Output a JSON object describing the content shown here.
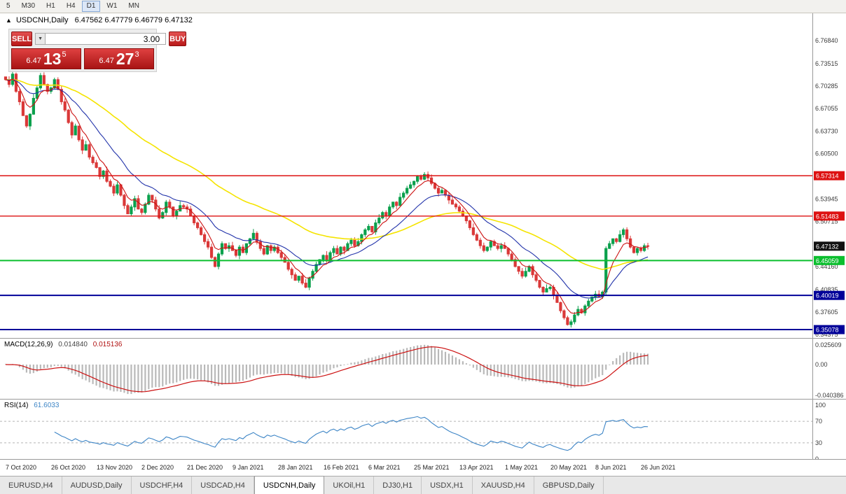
{
  "toolbar": {
    "timeframes": [
      "5",
      "M30",
      "H1",
      "H4",
      "D1",
      "W1",
      "MN"
    ],
    "active": "D1"
  },
  "chart": {
    "symbol": "USDCNH,Daily",
    "ohlc_text": "6.47562 6.47779 6.46779 6.47132",
    "trade_panel": {
      "sell_label": "SELL",
      "buy_label": "BUY",
      "volume": "3.00",
      "sell_price": {
        "small": "6.47",
        "big": "13",
        "sup": "5"
      },
      "buy_price": {
        "small": "6.47",
        "big": "27",
        "sup": "3"
      }
    },
    "levels": [
      {
        "label": "6.57314",
        "value": 6.57314,
        "color": "#dd1111",
        "width": 1.4
      },
      {
        "label": "6.51483",
        "value": 6.51483,
        "color": "#dd1111",
        "width": 1.4
      },
      {
        "label": "6.45059",
        "value": 6.45059,
        "color": "#0bbf2e",
        "width": 2
      },
      {
        "label": "6.40019",
        "value": 6.40019,
        "color": "#000099",
        "width": 2
      },
      {
        "label": "6.35078",
        "value": 6.35078,
        "color": "#000099",
        "width": 2
      }
    ],
    "current_price": {
      "label": "6.47132",
      "value": 6.47132,
      "badge_color": "#111111"
    },
    "scale_ticks": [
      "6.76840",
      "6.73515",
      "6.70285",
      "6.67055",
      "6.63730",
      "6.60500",
      "6.53945",
      "6.50715",
      "6.44160",
      "6.40835",
      "6.37605",
      "6.34375"
    ]
  },
  "chart_data": {
    "type": "candlestick",
    "title": "USDCNH,Daily",
    "x_labels": [
      "7 Oct 2020",
      "26 Oct 2020",
      "13 Nov 2020",
      "2 Dec 2020",
      "21 Dec 2020",
      "9 Jan 2021",
      "28 Jan 2021",
      "16 Feb 2021",
      "6 Mar 2021",
      "25 Mar 2021",
      "13 Apr 2021",
      "1 May 2021",
      "20 May 2021",
      "8 Jun 2021",
      "26 Jun 2021"
    ],
    "label_every_n_bars": 13,
    "ylim": [
      6.34375,
      6.7684
    ],
    "up_color": "#0ba04c",
    "down_color": "#da3838",
    "closes": [
      6.712,
      6.705,
      6.72,
      6.695,
      6.68,
      6.66,
      6.645,
      6.662,
      6.685,
      6.7,
      6.718,
      6.705,
      6.695,
      6.7,
      6.712,
      6.698,
      6.68,
      6.668,
      6.65,
      6.632,
      6.645,
      6.625,
      6.61,
      6.618,
      6.6,
      6.592,
      6.585,
      6.572,
      6.58,
      6.565,
      6.558,
      6.548,
      6.56,
      6.545,
      6.53,
      6.518,
      6.528,
      6.54,
      6.525,
      6.52,
      6.532,
      6.545,
      6.538,
      6.525,
      6.512,
      6.52,
      6.535,
      6.528,
      6.515,
      6.522,
      6.53,
      6.528,
      6.525,
      6.515,
      6.505,
      6.498,
      6.488,
      6.478,
      6.47,
      6.455,
      6.442,
      6.46,
      6.475,
      6.468,
      6.472,
      6.465,
      6.458,
      6.47,
      6.462,
      6.475,
      6.482,
      6.49,
      6.478,
      6.468,
      6.46,
      6.472,
      6.465,
      6.47,
      6.462,
      6.455,
      6.448,
      6.438,
      6.43,
      6.422,
      6.428,
      6.418,
      6.412,
      6.425,
      6.435,
      6.445,
      6.452,
      6.458,
      6.45,
      6.462,
      6.468,
      6.46,
      6.47,
      6.465,
      6.475,
      6.48,
      6.472,
      6.478,
      6.488,
      6.495,
      6.5,
      6.492,
      6.505,
      6.512,
      6.52,
      6.515,
      6.528,
      6.535,
      6.53,
      6.542,
      6.548,
      6.555,
      6.56,
      6.565,
      6.572,
      6.568,
      6.575,
      6.57,
      6.562,
      6.555,
      6.548,
      6.552,
      6.545,
      6.538,
      6.532,
      6.528,
      6.522,
      6.515,
      6.508,
      6.498,
      6.488,
      6.48,
      6.472,
      6.465,
      6.47,
      6.478,
      6.472,
      6.468,
      6.472,
      6.468,
      6.46,
      6.452,
      6.442,
      6.435,
      6.428,
      6.435,
      6.442,
      6.43,
      6.422,
      6.412,
      6.405,
      6.41,
      6.412,
      6.4,
      6.39,
      6.378,
      6.368,
      6.358,
      6.362,
      6.372,
      6.38,
      6.375,
      6.385,
      6.392,
      6.398,
      6.402,
      6.398,
      6.405,
      6.468,
      6.475,
      6.482,
      6.478,
      6.488,
      6.495,
      6.482,
      6.47,
      6.462,
      6.468,
      6.465,
      6.472,
      6.47132
    ],
    "moving_averages": [
      {
        "name": "fast",
        "period": 6,
        "color": "#cc1111"
      },
      {
        "name": "medium",
        "period": 18,
        "color": "#2233aa"
      },
      {
        "name": "slow",
        "period": 55,
        "color": "#f5e400"
      }
    ]
  },
  "macd": {
    "label": "MACD(12,26,9)",
    "value": "0.014840",
    "signal_value": "0.015136",
    "params": [
      12,
      26,
      9
    ],
    "hist_color": "#b9b9b9",
    "signal_color": "#cc1111",
    "scale_ticks": [
      {
        "label": "0.025609",
        "value": 0.025609
      },
      {
        "label": "0.00",
        "value": 0
      },
      {
        "label": "-0.040386",
        "value": -0.040386
      }
    ]
  },
  "rsi": {
    "label": "RSI(14)",
    "value": "61.6033",
    "period": 14,
    "line_color": "#3d85c6",
    "levels": [
      70,
      30
    ],
    "scale_ticks": [
      {
        "label": "100",
        "value": 100
      },
      {
        "label": "70",
        "value": 70
      },
      {
        "label": "30",
        "value": 30
      },
      {
        "label": "0",
        "value": 0
      }
    ]
  },
  "tabs": [
    "EURUSD,H4",
    "AUDUSD,Daily",
    "USDCHF,H4",
    "USDCAD,H4",
    "USDCNH,Daily",
    "UKOil,H1",
    "DJ30,H1",
    "USDX,H1",
    "XAUUSD,H4",
    "GBPUSD,Daily"
  ],
  "active_tab": "USDCNH,Daily"
}
